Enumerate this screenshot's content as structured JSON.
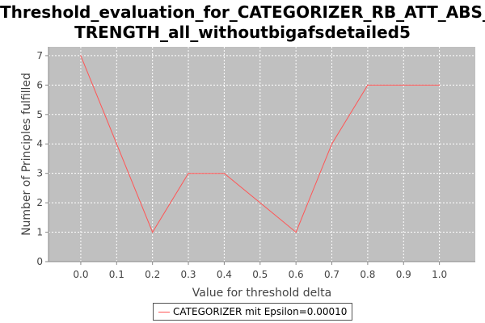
{
  "chart_data": {
    "type": "line",
    "title_lines": [
      "Threshold_evaluation_for_CATEGORIZER_RB_ATT_ABS_S",
      "TRENGTH_all_withoutbigafsdetailed5"
    ],
    "xlabel": "Value for threshold delta",
    "ylabel": "Number of Principles fulfilled",
    "xlim": [
      -0.09,
      1.1
    ],
    "ylim": [
      0,
      7.3
    ],
    "xticks": [
      "0.0",
      "0.1",
      "0.2",
      "0.3",
      "0.4",
      "0.5",
      "0.6",
      "0.7",
      "0.8",
      "0.9",
      "1.0"
    ],
    "yticks": [
      "0",
      "1",
      "2",
      "3",
      "4",
      "5",
      "6",
      "7"
    ],
    "grid": true,
    "legend_position": "bottom",
    "series": [
      {
        "name": "CATEGORIZER mit Epsilon=0.00010",
        "color": "#ff5555",
        "x": [
          0.0,
          0.1,
          0.2,
          0.3,
          0.4,
          0.5,
          0.6,
          0.7,
          0.8,
          0.9,
          1.0
        ],
        "y": [
          7,
          4,
          1,
          3,
          3,
          2,
          1,
          4,
          6,
          6,
          6
        ]
      }
    ],
    "colors": {
      "plot_background": "#c0c0c0",
      "gridline": "#ffffff",
      "axis": "#888888"
    }
  }
}
